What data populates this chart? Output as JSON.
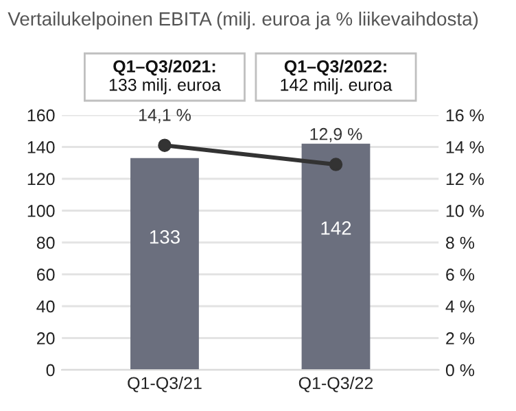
{
  "chart_data": {
    "type": "bar",
    "title": "Vertailukelpoinen EBITA (milj. euroa ja % liikevaihdosta)",
    "annotations": [
      "Q1–Q3/2021:\n133 milj. euroa",
      "Q1–Q3/2022:\n142 milj. euroa"
    ],
    "categories": [
      "Q1-Q3/21",
      "Q1-Q3/22"
    ],
    "series": [
      {
        "color": "#6b6f7e",
        "values": [
          133,
          142
        ],
        "data_labels": true
      },
      {
        "type": "line",
        "axis": "y2",
        "color": "#333333",
        "values": [
          14.1,
          12.9
        ],
        "value_labels": [
          "14,1 %",
          "12,9 %"
        ],
        "marker": "circle"
      }
    ],
    "ylim": [
      0,
      160
    ],
    "yticks": [
      0,
      20,
      40,
      60,
      80,
      100,
      120,
      140,
      160
    ],
    "y2lim": [
      0,
      16
    ],
    "y2ticks": [
      {
        "value": 0,
        "label": "0 %"
      },
      {
        "value": 2,
        "label": "2 %"
      },
      {
        "value": 4,
        "label": "4 %"
      },
      {
        "value": 6,
        "label": "6 %"
      },
      {
        "value": 8,
        "label": "8 %"
      },
      {
        "value": 10,
        "label": "10 %"
      },
      {
        "value": 12,
        "label": "12 %"
      },
      {
        "value": 14,
        "label": "14 %"
      },
      {
        "value": 16,
        "label": "16 %"
      }
    ],
    "grid": "y"
  }
}
